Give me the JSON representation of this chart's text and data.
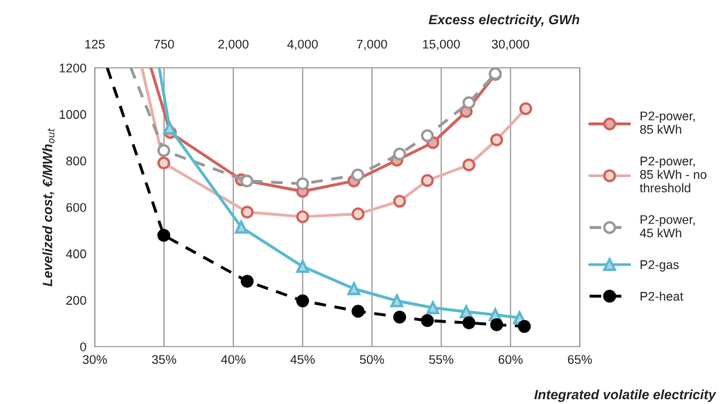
{
  "chart_data": {
    "type": "line",
    "xlabel": "Integrated volatile electricity",
    "ylabel": "Levelized cost, €/MWh$_{out}$",
    "x2label": "Excess electricity, GWh",
    "xlim": [
      30,
      65
    ],
    "xticks": [
      {
        "value": 30,
        "label": "30%"
      },
      {
        "value": 35,
        "label": "35%"
      },
      {
        "value": 40,
        "label": "40%"
      },
      {
        "value": 45,
        "label": "45%"
      },
      {
        "value": 50,
        "label": "50%"
      },
      {
        "value": 55,
        "label": "55%"
      },
      {
        "value": 60,
        "label": "60%"
      },
      {
        "value": 65,
        "label": "65%"
      }
    ],
    "annotations": [
      "125",
      "750",
      "2,000",
      "4,000",
      "7,000",
      "15,000",
      "30,000"
    ],
    "ylim": [
      0,
      1200
    ],
    "yticks": [
      0,
      200,
      400,
      600,
      800,
      1000,
      1200
    ],
    "grid": "x",
    "legend": "right",
    "series": [
      {
        "name": "P2-power,\n85 kWh",
        "color": "#d0645c",
        "marker": "circle",
        "line_style": "solid",
        "x": [
          34.05,
          35.45,
          40.57,
          45.0,
          48.7,
          51.8,
          54.4,
          56.8,
          58.9
        ],
        "values": [
          1200,
          921,
          718,
          668,
          713,
          802,
          878,
          1012,
          1171
        ]
      },
      {
        "name": "P2-power,\n85 kWh - no\nthreshold",
        "color": "#e8b0aa",
        "marker": "circle",
        "line_style": "solid",
        "x": [
          33.4,
          34.98,
          41.0,
          45.0,
          49.0,
          52.0,
          54.0,
          57.0,
          59.0,
          61.1
        ],
        "values": [
          1200,
          790,
          579,
          559,
          571,
          626,
          715,
          782,
          890,
          1024
        ]
      },
      {
        "name": "P2-power,\n45 kWh",
        "color": "#999999",
        "marker": "circle",
        "line_style": "dashed",
        "x": [
          32.6,
          34.98,
          40.98,
          45.0,
          48.98,
          52.0,
          54.0,
          57.0,
          58.9
        ],
        "values": [
          1200,
          844,
          713,
          701,
          739,
          829,
          908,
          1050,
          1175
        ]
      },
      {
        "name": "P2-gas",
        "color": "#5bb8d0",
        "marker": "triangle",
        "line_style": "solid",
        "x": [
          34.65,
          35.4,
          40.57,
          45.0,
          48.7,
          51.8,
          54.4,
          56.8,
          58.9,
          60.65
        ],
        "values": [
          1200,
          941,
          514,
          345,
          249,
          197,
          167,
          150,
          137,
          124
        ]
      },
      {
        "name": "P2-heat",
        "color": "#000000",
        "marker": "circle",
        "line_style": "dashed",
        "x": [
          30.9,
          34.98,
          41.0,
          45.0,
          49.0,
          52.0,
          54.0,
          57.0,
          59.0,
          61.0
        ],
        "values": [
          1200,
          479,
          281,
          197,
          152,
          127,
          112,
          102,
          94,
          87
        ]
      }
    ]
  }
}
